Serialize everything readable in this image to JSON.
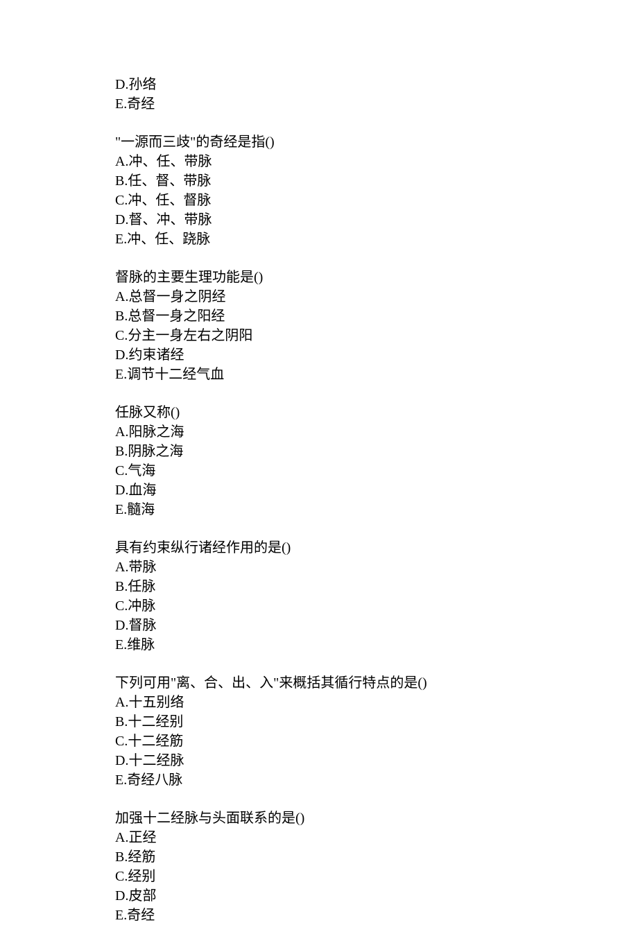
{
  "continuation": {
    "options": [
      "D.孙络",
      "E.奇经"
    ]
  },
  "questions": [
    {
      "text": "\"一源而三歧\"的奇经是指()",
      "options": [
        "A.冲、任、带脉",
        "B.任、督、带脉",
        "C.冲、任、督脉",
        "D.督、冲、带脉",
        "E.冲、任、跷脉"
      ]
    },
    {
      "text": "督脉的主要生理功能是()",
      "options": [
        "A.总督一身之阴经",
        "B.总督一身之阳经",
        "C.分主一身左右之阴阳",
        "D.约束诸经",
        "E.调节十二经气血"
      ]
    },
    {
      "text": "任脉又称()",
      "options": [
        "A.阳脉之海",
        "B.阴脉之海",
        "C.气海",
        "D.血海",
        "E.髓海"
      ]
    },
    {
      "text": "具有约束纵行诸经作用的是()",
      "options": [
        "A.带脉",
        "B.任脉",
        "C.冲脉",
        "D.督脉",
        "E.维脉"
      ]
    },
    {
      "text": "下列可用\"离、合、出、入\"来概括其循行特点的是()",
      "options": [
        "A.十五别络",
        "B.十二经别",
        "C.十二经筋",
        "D.十二经脉",
        "E.奇经八脉"
      ]
    },
    {
      "text": "加强十二经脉与头面联系的是()",
      "options": [
        "A.正经",
        "B.经筋",
        "C.经别",
        "D.皮部",
        "E.奇经"
      ]
    }
  ]
}
